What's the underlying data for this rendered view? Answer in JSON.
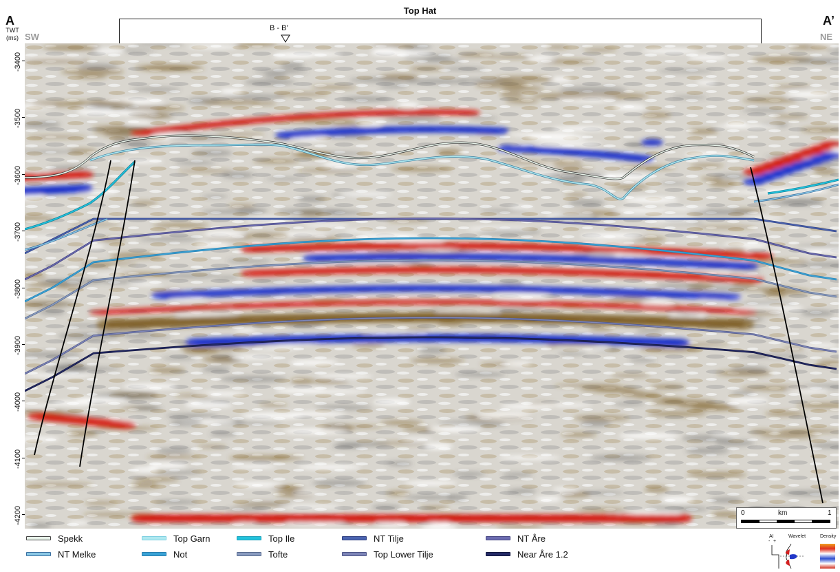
{
  "title": "Top Hat",
  "section": {
    "start_letter": "A",
    "end_letter": "A’",
    "start_dir": "SW",
    "end_dir": "NE",
    "crossline_label": "B - B’"
  },
  "y_axis": {
    "title_line1": "TWT",
    "title_line2": "(ms)",
    "ticks": [
      "-3400",
      "-3500",
      "-3600",
      "-3700",
      "-3800",
      "-3900",
      "-4000",
      "-4100",
      "-4200"
    ],
    "range": [
      -3370,
      -4225
    ]
  },
  "scale_bar": {
    "left": "0",
    "unit": "km",
    "right": "1"
  },
  "legend": [
    {
      "label": "Spekk",
      "color": "#e8f3ea",
      "edge": "#444444"
    },
    {
      "label": "Top Garn",
      "color": "#aee8f0",
      "edge": "#7ccfe0"
    },
    {
      "label": "Top Ile",
      "color": "#22c2dc",
      "edge": "#1a9fb8"
    },
    {
      "label": "NT Tilje",
      "color": "#4a63b0",
      "edge": "#2e3f80"
    },
    {
      "label": "NT Åre",
      "color": "#6b6bb0",
      "edge": "#444480"
    },
    {
      "label": "NT Melke",
      "color": "#8cc9e6",
      "edge": "#3a6fa0"
    },
    {
      "label": "Not",
      "color": "#3aa3d6",
      "edge": "#2a7fb0"
    },
    {
      "label": "Tofte",
      "color": "#8a9cc0",
      "edge": "#5a6c90"
    },
    {
      "label": "Top Lower Tilje",
      "color": "#7e86b8",
      "edge": "#4e5688"
    },
    {
      "label": "Near Åre 1.2",
      "color": "#242a66",
      "edge": "#141840"
    }
  ],
  "wavelet_key": {
    "ai_label": "AI",
    "minus": "-",
    "plus": "+",
    "wavelet_label": "Wavelet",
    "density_label": "Density"
  },
  "colors": {
    "positive": "#d41a10",
    "negative": "#1a2fcc",
    "brown": "#7a5a20",
    "fault": "#000000"
  }
}
